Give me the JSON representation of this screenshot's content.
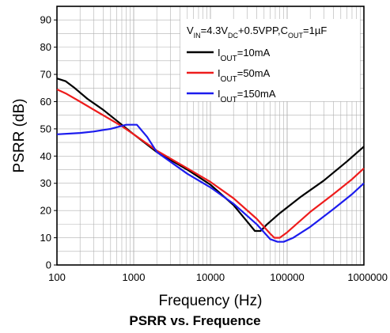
{
  "chart_data": {
    "type": "line",
    "title": "PSRR vs. Frequence",
    "xlabel": "Frequency (Hz)",
    "ylabel": "PSRR (dB)",
    "x_scale": "log",
    "xlim": [
      100,
      1000000
    ],
    "ylim": [
      0,
      95
    ],
    "x_ticks": [
      "100",
      "1000",
      "10000",
      "100000",
      "1000000"
    ],
    "y_ticks": [
      "0",
      "10",
      "20",
      "30",
      "40",
      "50",
      "60",
      "70",
      "80",
      "90"
    ],
    "grid": true,
    "legend_position": "top-right",
    "condition": {
      "parts": [
        {
          "text": "V",
          "sub": "IN"
        },
        {
          "text": "=4.3V",
          "sub": "DC"
        },
        {
          "text": "+0.5VPP,C",
          "sub": "OUT"
        },
        {
          "text": "=1µF",
          "sub": ""
        }
      ]
    },
    "series": [
      {
        "name": "IOUT=10mA",
        "label_main": "I",
        "label_sub": "OUT",
        "label_rest": "=10mA",
        "color": "#000000",
        "points": [
          [
            100,
            68.5
          ],
          [
            130,
            67.5
          ],
          [
            170,
            65
          ],
          [
            250,
            61
          ],
          [
            400,
            57
          ],
          [
            700,
            51.5
          ],
          [
            1000,
            48
          ],
          [
            2000,
            41.5
          ],
          [
            5000,
            35
          ],
          [
            10000,
            29.5
          ],
          [
            20000,
            22
          ],
          [
            30000,
            16
          ],
          [
            38000,
            12.5
          ],
          [
            45000,
            12.5
          ],
          [
            55000,
            15
          ],
          [
            80000,
            19
          ],
          [
            150000,
            25
          ],
          [
            300000,
            31
          ],
          [
            600000,
            38
          ],
          [
            1000000,
            43.5
          ]
        ]
      },
      {
        "name": "IOUT=50mA",
        "label_main": "I",
        "label_sub": "OUT",
        "label_rest": "=50mA",
        "color": "#ee1c1c",
        "points": [
          [
            100,
            64.5
          ],
          [
            130,
            63
          ],
          [
            200,
            60
          ],
          [
            400,
            55
          ],
          [
            700,
            51
          ],
          [
            1000,
            48
          ],
          [
            2000,
            42
          ],
          [
            5000,
            35.5
          ],
          [
            10000,
            30.5
          ],
          [
            20000,
            24.5
          ],
          [
            40000,
            17
          ],
          [
            60000,
            11.5
          ],
          [
            68000,
            10
          ],
          [
            80000,
            10
          ],
          [
            100000,
            12
          ],
          [
            200000,
            19.5
          ],
          [
            400000,
            26
          ],
          [
            700000,
            31.5
          ],
          [
            1000000,
            35.5
          ]
        ]
      },
      {
        "name": "IOUT=150mA",
        "label_main": "I",
        "label_sub": "OUT",
        "label_rest": "=150mA",
        "color": "#1c1cee",
        "points": [
          [
            100,
            48
          ],
          [
            200,
            48.5
          ],
          [
            300,
            49
          ],
          [
            500,
            50
          ],
          [
            800,
            51.5
          ],
          [
            1100,
            51.5
          ],
          [
            1500,
            47
          ],
          [
            2000,
            41.5
          ],
          [
            5000,
            33.5
          ],
          [
            10000,
            28.5
          ],
          [
            20000,
            22.5
          ],
          [
            40000,
            15
          ],
          [
            60000,
            9.5
          ],
          [
            75000,
            8.5
          ],
          [
            90000,
            8.5
          ],
          [
            120000,
            10
          ],
          [
            200000,
            14
          ],
          [
            400000,
            20.5
          ],
          [
            700000,
            26
          ],
          [
            1000000,
            30
          ]
        ]
      }
    ]
  }
}
